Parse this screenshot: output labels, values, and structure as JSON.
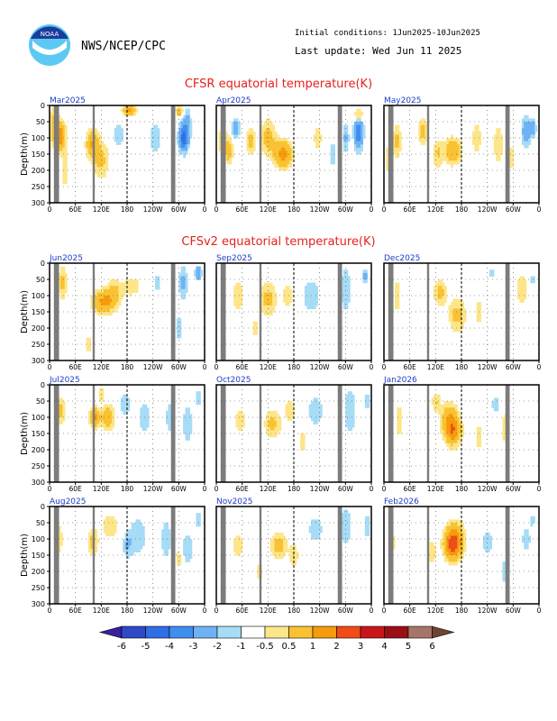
{
  "header": {
    "agency": "NWS/NCEP/CPC",
    "init_conditions": "Initial conditions: 1Jun2025-10Jun2025",
    "last_update": "Last update: Wed Jun 11 2025",
    "logo_text": "NOAA"
  },
  "sections": {
    "cfsr_title": "CFSR equatorial temperature(K)",
    "cfsv2_title": "CFSv2 equatorial temperature(K)"
  },
  "colors": {
    "title_red": "#e8201c",
    "month_blue": "#1e3cc8",
    "land_gray": "#7c7c7c"
  },
  "chart_data": {
    "type": "heatmap",
    "ylabel": "Depth(m)",
    "y_ticks": [
      "0",
      "50",
      "100",
      "150",
      "200",
      "250",
      "300"
    ],
    "x_ticks": [
      "0",
      "60E",
      "120E",
      "180",
      "120W",
      "60W",
      "0"
    ],
    "ylim": [
      300,
      0
    ],
    "xlim_deg_east": [
      0,
      360
    ],
    "panels": [
      {
        "month": "Mar2025",
        "group": "CFSR"
      },
      {
        "month": "Apr2025",
        "group": "CFSR"
      },
      {
        "month": "May2025",
        "group": "CFSR"
      },
      {
        "month": "Jun2025",
        "group": "CFSv2"
      },
      {
        "month": "Sep2025",
        "group": "CFSv2"
      },
      {
        "month": "Dec2025",
        "group": "CFSv2"
      },
      {
        "month": "Jul2025",
        "group": "CFSv2"
      },
      {
        "month": "Oct2025",
        "group": "CFSv2"
      },
      {
        "month": "Jan2026",
        "group": "CFSv2"
      },
      {
        "month": "Aug2025",
        "group": "CFSv2"
      },
      {
        "month": "Nov2025",
        "group": "CFSv2"
      },
      {
        "month": "Feb2026",
        "group": "CFSv2"
      }
    ],
    "colorbar": {
      "labels": [
        "-6",
        "-5",
        "-4",
        "-3",
        "-2",
        "-1",
        "-0.5",
        "0.5",
        "1",
        "2",
        "3",
        "4",
        "5",
        "6"
      ],
      "colors": [
        "#3b1f9e",
        "#2e49c6",
        "#2f6ee6",
        "#3f8ff0",
        "#6fb2f4",
        "#a6dcf6",
        "#ffffff",
        "#fde68a",
        "#f9c233",
        "#f59b0c",
        "#ef4c17",
        "#c8161c",
        "#9b0e14",
        "#a5756a",
        "#6e4434"
      ]
    }
  }
}
